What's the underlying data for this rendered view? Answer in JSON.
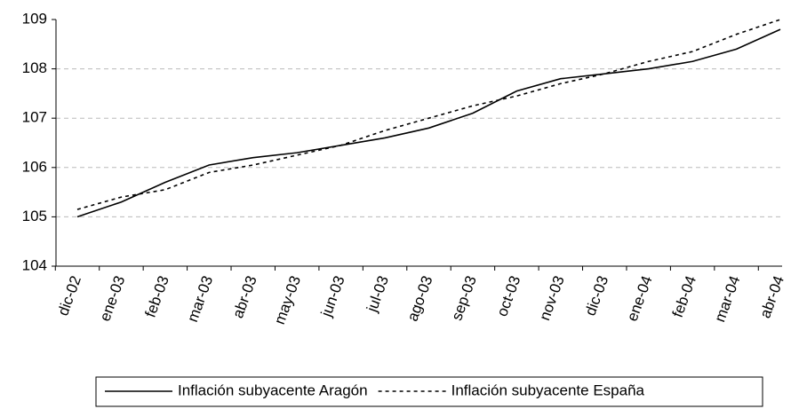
{
  "chart_data": {
    "type": "line",
    "categories": [
      "dic-02",
      "ene-03",
      "feb-03",
      "mar-03",
      "abr-03",
      "may-03",
      "jun-03",
      "jul-03",
      "ago-03",
      "sep-03",
      "oct-03",
      "nov-03",
      "dic-03",
      "ene-04",
      "feb-04",
      "mar-04",
      "abr-04"
    ],
    "series": [
      {
        "name": "Inflación subyacente Aragón",
        "color": "#000000",
        "dash": "solid",
        "values": [
          105.0,
          105.3,
          105.7,
          106.05,
          106.2,
          106.3,
          106.45,
          106.6,
          106.8,
          107.1,
          107.55,
          107.8,
          107.9,
          108.0,
          108.15,
          108.4,
          108.8
        ]
      },
      {
        "name": "Inflación subyacente España",
        "color": "#000000",
        "dash": "dotted",
        "values": [
          105.15,
          105.4,
          105.55,
          105.9,
          106.05,
          106.25,
          106.45,
          106.75,
          107.0,
          107.25,
          107.45,
          107.7,
          107.9,
          108.15,
          108.35,
          108.7,
          109.0
        ]
      }
    ],
    "ylim": [
      104,
      109
    ],
    "yticks": [
      104,
      105,
      106,
      107,
      108,
      109
    ],
    "grid": true,
    "legend": "bottom"
  }
}
